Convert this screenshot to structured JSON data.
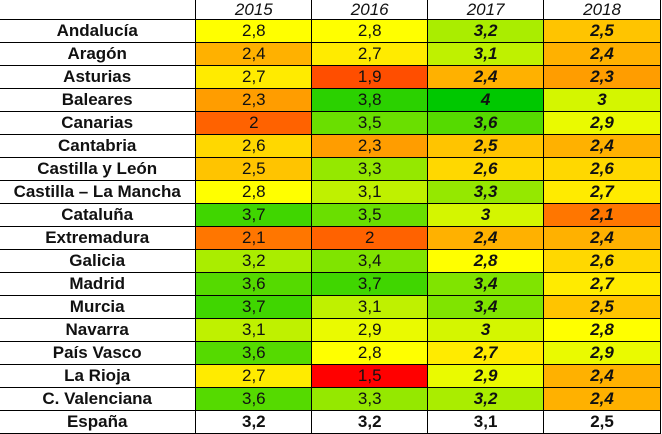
{
  "years": [
    "2015",
    "2016",
    "2017",
    "2018"
  ],
  "rows": [
    {
      "region": "Andalucía",
      "values": [
        "2,8",
        "2,8",
        "3,2",
        "2,5"
      ]
    },
    {
      "region": "Aragón",
      "values": [
        "2,4",
        "2,7",
        "3,1",
        "2,4"
      ]
    },
    {
      "region": "Asturias",
      "values": [
        "2,7",
        "1,9",
        "2,4",
        "2,3"
      ]
    },
    {
      "region": "Baleares",
      "values": [
        "2,3",
        "3,8",
        "4",
        "3"
      ]
    },
    {
      "region": "Canarias",
      "values": [
        "2",
        "3,5",
        "3,6",
        "2,9"
      ]
    },
    {
      "region": "Cantabria",
      "values": [
        "2,6",
        "2,3",
        "2,5",
        "2,4"
      ]
    },
    {
      "region": "Castilla y León",
      "values": [
        "2,5",
        "3,3",
        "2,6",
        "2,6"
      ]
    },
    {
      "region": "Castilla – La Mancha",
      "values": [
        "2,8",
        "3,1",
        "3,3",
        "2,7"
      ]
    },
    {
      "region": "Cataluña",
      "values": [
        "3,7",
        "3,5",
        "3",
        "2,1"
      ]
    },
    {
      "region": "Extremadura",
      "values": [
        "2,1",
        "2",
        "2,4",
        "2,4"
      ]
    },
    {
      "region": "Galicia",
      "values": [
        "3,2",
        "3,4",
        "2,8",
        "2,6"
      ]
    },
    {
      "region": "Madrid",
      "values": [
        "3,6",
        "3,7",
        "3,4",
        "2,7"
      ]
    },
    {
      "region": "Murcia",
      "values": [
        "3,7",
        "3,1",
        "3,4",
        "2,5"
      ]
    },
    {
      "region": "Navarra",
      "values": [
        "3,1",
        "2,9",
        "3",
        "2,8"
      ]
    },
    {
      "region": "País Vasco",
      "values": [
        "3,6",
        "2,8",
        "2,7",
        "2,9"
      ]
    },
    {
      "region": "La Rioja",
      "values": [
        "2,7",
        "1,5",
        "2,9",
        "2,4"
      ]
    },
    {
      "region": "C. Valenciana",
      "values": [
        "3,6",
        "3,3",
        "3,2",
        "2,4"
      ]
    }
  ],
  "total": {
    "region": "España",
    "values": [
      "3,2",
      "3,2",
      "3,1",
      "2,5"
    ]
  },
  "color_scale": {
    "low": "#ff0000",
    "mid": "#ffff00",
    "high": "#00c800",
    "min": 1.5,
    "mid_value": 2.8,
    "max": 4
  }
}
